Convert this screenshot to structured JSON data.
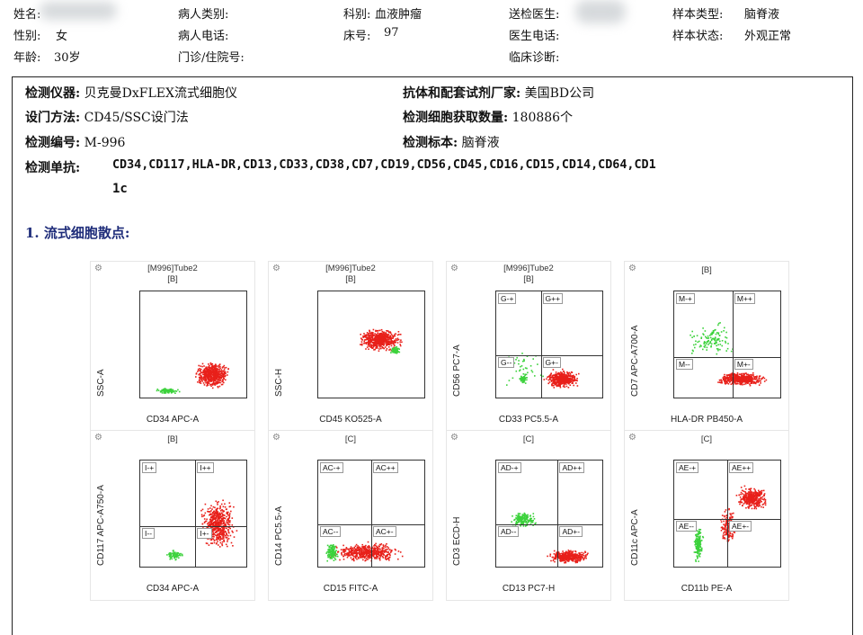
{
  "patient": {
    "name_label": "姓名:",
    "gender_label": "性别:",
    "gender_value": "女",
    "age_label": "年龄:",
    "age_value": "30岁",
    "type_label": "病人类别:",
    "phone_label": "病人电话:",
    "outpatient_label": "门诊/住院号:",
    "dept_label": "科别:",
    "dept_value": "血液肿瘤",
    "bed_label": "床号:",
    "bed_value": "97",
    "doctor_label": "送检医生:",
    "doctor_phone_label": "医生电话:",
    "diagnosis_label": "临床诊断:",
    "sample_type_label": "样本类型:",
    "sample_type_value": "脑脊液",
    "sample_state_label": "样本状态:",
    "sample_state_value": "外观正常"
  },
  "test": {
    "instrument_label": "检测仪器:",
    "instrument_value": "贝克曼DxFLEX流式细胞仪",
    "reagent_label": "抗体和配套试剂厂家:",
    "reagent_value": "美国BD公司",
    "gating_label": "设门方法:",
    "gating_value": "CD45/SSC设门法",
    "cells_label": "检测细胞获取数量:",
    "cells_value": "180886个",
    "id_label": "检测编号:",
    "id_value": "M-996",
    "specimen_label": "检测标本:",
    "specimen_value": "脑脊液",
    "antibodies_label": "检测单抗:",
    "antibodies_line1": "CD34,CD117,HLA-DR,CD13,CD33,CD38,CD7,CD19,CD56,CD45,CD16,CD15,CD14,CD64,CD1",
    "antibodies_line2": "1c"
  },
  "section_title": "1. 流式细胞散点:",
  "panels": [
    {
      "t1": "[M996]Tube2",
      "t2": "[B]",
      "x": "CD34 APC-A",
      "y": "SSC-A",
      "q": []
    },
    {
      "t1": "[M996]Tube2",
      "t2": "[B]",
      "x": "CD45 KO525-A",
      "y": "SSC-H",
      "q": []
    },
    {
      "t1": "[M996]Tube2",
      "t2": "[B]",
      "x": "CD33 PC5.5-A",
      "y": "CD56 PC7-A",
      "q": [
        "G-+",
        "G++",
        "G--",
        "G+-"
      ]
    },
    {
      "t1": "",
      "t2": "[B]",
      "x": "HLA-DR PB450-A",
      "y": "CD7 APC-A700-A",
      "q": [
        "M-+",
        "M++",
        "M--",
        "M+-"
      ]
    },
    {
      "t1": "",
      "t2": "[B]",
      "x": "CD34 APC-A",
      "y": "CD117 APC-A750-A",
      "q": [
        "I-+",
        "I++",
        "I--",
        "I+-"
      ]
    },
    {
      "t1": "",
      "t2": "[C]",
      "x": "CD15 FITC-A",
      "y": "CD14 PC5.5-A",
      "q": [
        "AC-+",
        "AC++",
        "AC--",
        "AC+-"
      ]
    },
    {
      "t1": "",
      "t2": "[C]",
      "x": "CD13 PC7-H",
      "y": "CD3 ECD-H",
      "q": [
        "AD-+",
        "AD++",
        "AD--",
        "AD+-"
      ]
    },
    {
      "t1": "",
      "t2": "[C]",
      "x": "CD11b PE-A",
      "y": "CD11c APC-A",
      "q": [
        "AE-+",
        "AE++",
        "AE--",
        "AE+-"
      ]
    }
  ],
  "colors": {
    "red": "#e8201a",
    "green": "#3cd23c",
    "title": "#1f2d7a"
  }
}
